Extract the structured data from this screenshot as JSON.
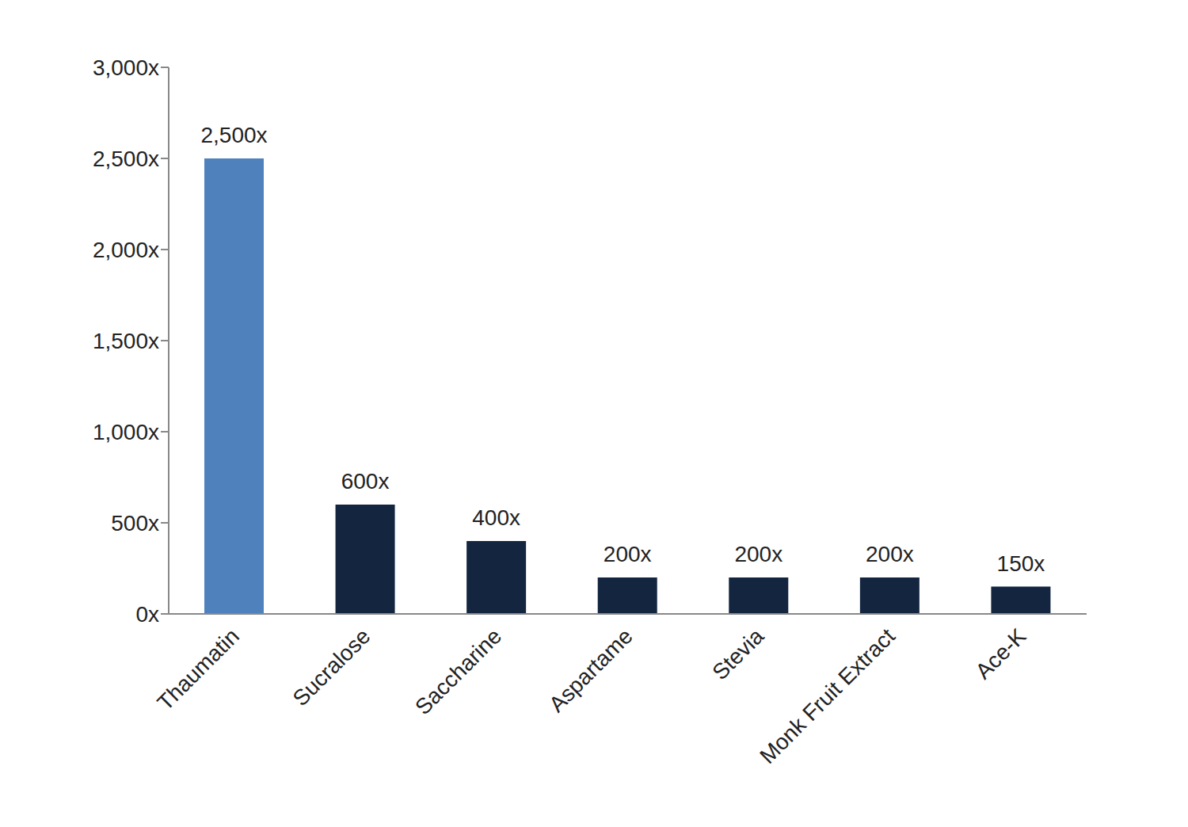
{
  "chart_data": {
    "type": "bar",
    "categories": [
      "Thaumatin",
      "Sucralose",
      "Saccharine",
      "Aspartame",
      "Stevia",
      "Monk Fruit Extract",
      "Ace-K"
    ],
    "values": [
      2500,
      600,
      400,
      200,
      200,
      200,
      150
    ],
    "value_labels": [
      "2,500x",
      "600x",
      "400x",
      "200x",
      "200x",
      "200x",
      "150x"
    ],
    "colors": [
      "#4f81bd",
      "#13253f",
      "#13253f",
      "#13253f",
      "#13253f",
      "#13253f",
      "#13253f"
    ],
    "ylim": [
      0,
      3000
    ],
    "yticks": [
      {
        "value": 0,
        "label": "0x"
      },
      {
        "value": 500,
        "label": "500x"
      },
      {
        "value": 1000,
        "label": "1,000x"
      },
      {
        "value": 1500,
        "label": "1,500x"
      },
      {
        "value": 2000,
        "label": "2,000x"
      },
      {
        "value": 2500,
        "label": "2,500x"
      },
      {
        "value": 3000,
        "label": "3,000x"
      }
    ],
    "grid": false,
    "data_labels": true
  }
}
